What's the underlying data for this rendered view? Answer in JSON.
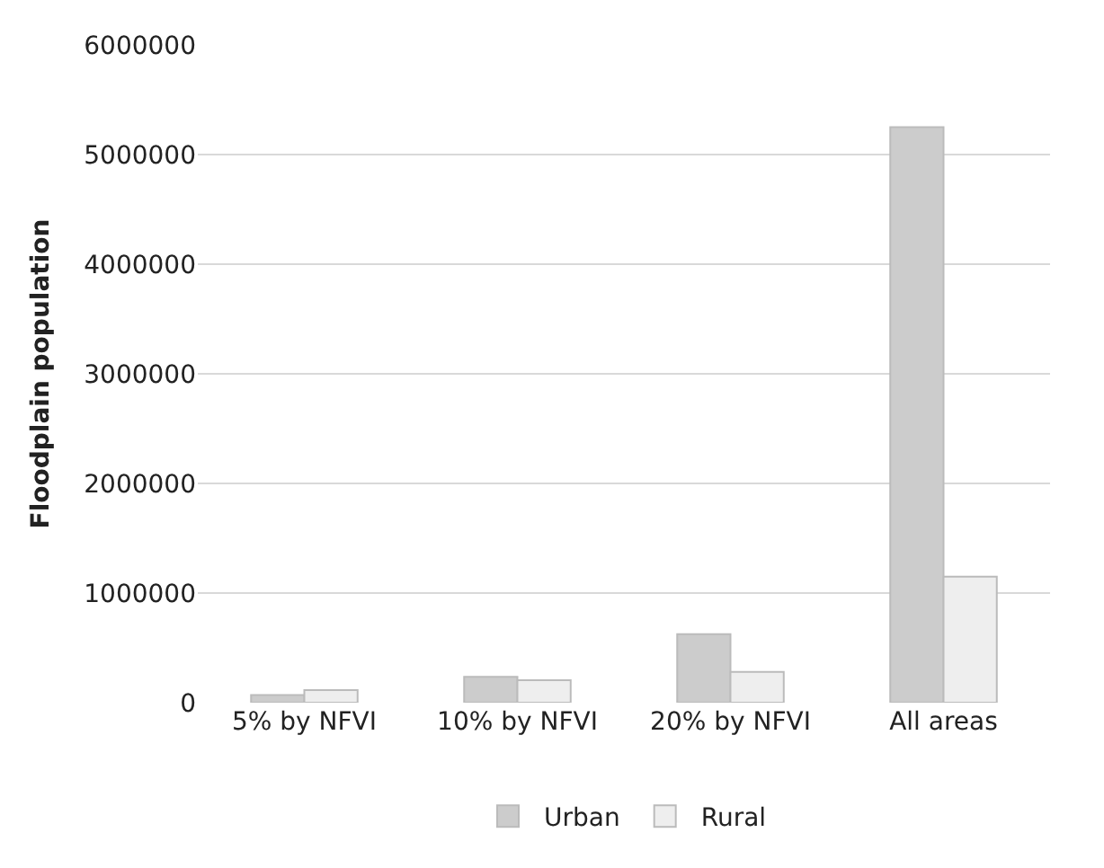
{
  "chart_data": {
    "type": "bar",
    "ylabel": "Floodplain population",
    "categories": [
      "5% by NFVI",
      "10% by NFVI",
      "20% by NFVI",
      "All areas"
    ],
    "series": [
      {
        "name": "Urban",
        "color": "#cccccc",
        "values": [
          70000,
          235000,
          625000,
          5250000
        ]
      },
      {
        "name": "Rural",
        "color": "#eeeeee",
        "values": [
          115000,
          205000,
          280000,
          1150000
        ]
      }
    ],
    "ylim": [
      0,
      6000000
    ],
    "yticks": [
      0,
      1000000,
      2000000,
      3000000,
      4000000,
      5000000,
      6000000
    ],
    "grid": "y",
    "legend": "bottom"
  }
}
